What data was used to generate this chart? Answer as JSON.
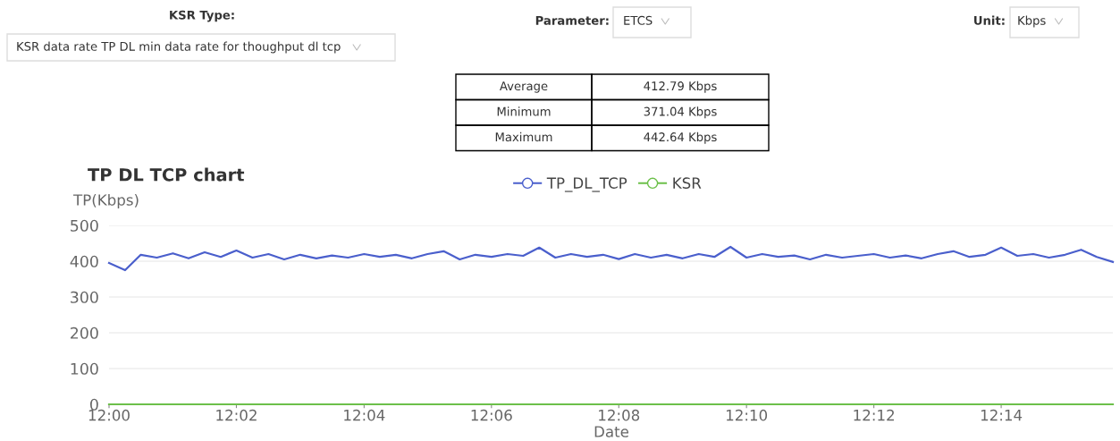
{
  "chart_data": [
    {
      "type": "other",
      "annotations": [
        "KSR Type:",
        "KSR data rate TP DL min data rate for thoughput dl tcp",
        "Parameter:",
        "ETCS",
        "Unit:",
        "Kbps",
        "Average",
        "412.79 Kbps",
        "Minimum",
        "371.04 Kbps",
        "Maximum",
        "442.64 Kbps"
      ]
    },
    {
      "type": "line",
      "title": "TP DL TCP chart",
      "ylabel": "TP(Kbps)",
      "xlabel": "Date",
      "xlim": [
        12,
        12.2625
      ],
      "xticks": [
        {
          "value": 12,
          "label": "12:00"
        },
        {
          "value": 12.0333,
          "label": "12:02"
        },
        {
          "value": 12.0667,
          "label": "12:04"
        },
        {
          "value": 12.1,
          "label": "12:06"
        },
        {
          "value": 12.1333,
          "label": "12:08"
        },
        {
          "value": 12.1667,
          "label": "12:10"
        },
        {
          "value": 12.2,
          "label": "12:12"
        },
        {
          "value": 12.2333,
          "label": "12:14"
        }
      ],
      "ylim": [
        0,
        500
      ],
      "yticks": [
        0,
        100,
        200,
        300,
        400,
        500
      ],
      "grid": "y",
      "legend": "top",
      "series": [
        {
          "name": "TP_DL_TCP",
          "color": "#4a5fcc",
          "x": [
            12,
            12.0042,
            12.0083,
            12.0125,
            12.0167,
            12.0208,
            12.025,
            12.0292,
            12.0333,
            12.0375,
            12.0417,
            12.0458,
            12.05,
            12.0542,
            12.0583,
            12.0625,
            12.0667,
            12.0708,
            12.075,
            12.0792,
            12.0833,
            12.0875,
            12.0917,
            12.0958,
            12.1,
            12.1042,
            12.1083,
            12.1125,
            12.1167,
            12.1208,
            12.125,
            12.1292,
            12.1333,
            12.1375,
            12.1417,
            12.1458,
            12.15,
            12.1542,
            12.1583,
            12.1625,
            12.1667,
            12.1708,
            12.175,
            12.1792,
            12.1833,
            12.1875,
            12.1917,
            12.1958,
            12.2,
            12.2042,
            12.2083,
            12.2125,
            12.2167,
            12.2208,
            12.225,
            12.2292,
            12.2333,
            12.2375,
            12.2417,
            12.2458,
            12.25,
            12.2542,
            12.2583,
            12.2625
          ],
          "values": [
            395,
            375,
            418,
            410,
            422,
            408,
            425,
            412,
            430,
            410,
            420,
            405,
            418,
            408,
            416,
            410,
            420,
            412,
            418,
            408,
            420,
            428,
            405,
            418,
            412,
            420,
            415,
            438,
            410,
            420,
            412,
            418,
            406,
            420,
            410,
            418,
            408,
            420,
            412,
            440,
            410,
            420,
            412,
            416,
            405,
            418,
            410,
            415,
            420,
            410,
            416,
            408,
            420,
            428,
            412,
            418,
            438,
            415,
            420,
            410,
            418,
            432,
            412,
            398
          ]
        },
        {
          "name": "KSR",
          "color": "#6cc04a",
          "x": [
            12,
            12.2625
          ],
          "values": [
            0,
            0
          ]
        }
      ]
    }
  ]
}
